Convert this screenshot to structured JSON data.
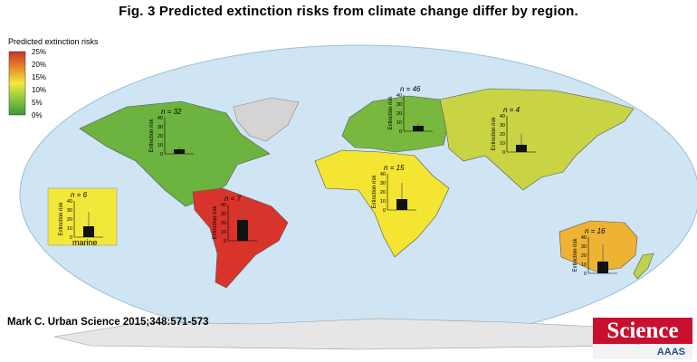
{
  "title": "Fig. 3 Predicted extinction risks from climate change differ by region.",
  "legend": {
    "title": "Predicted extinction risks",
    "ticks": [
      "25%",
      "20%",
      "15%",
      "10%",
      "5%",
      "0%"
    ],
    "colors": [
      "#c8302e",
      "#e8882a",
      "#f2e83a",
      "#8dc63f",
      "#3a9a3a"
    ]
  },
  "insets": {
    "axis_label": "Extinction risk",
    "y_ticks": [
      "40",
      "30",
      "20",
      "10",
      "0"
    ]
  },
  "regions": [
    {
      "id": "north-america",
      "n_label": "n = 32",
      "value": 5,
      "error_high": 8,
      "fill": "#6cb33f"
    },
    {
      "id": "europe",
      "n_label": "n = 46",
      "value": 6,
      "error_high": 9,
      "fill": "#79b83e"
    },
    {
      "id": "asia",
      "n_label": "n = 4",
      "value": 8,
      "error_high": 20,
      "fill": "#c8d444"
    },
    {
      "id": "africa",
      "n_label": "n = 15",
      "value": 12,
      "error_high": 30,
      "fill": "#f3e532"
    },
    {
      "id": "south-america",
      "n_label": "n = 7",
      "value": 23,
      "error_high": 38,
      "fill": "#d9342b"
    },
    {
      "id": "australia",
      "n_label": "n = 16",
      "value": 13,
      "error_high": 32,
      "fill": "#eeb333"
    },
    {
      "id": "marine",
      "n_label": "n = 6",
      "value": 12,
      "error_high": 28,
      "fill": "#f2e83a",
      "label": "marine"
    }
  ],
  "citation": "Mark C. Urban Science 2015;348:571-573",
  "logo": {
    "word": "Science",
    "sub": "AAAS"
  }
}
